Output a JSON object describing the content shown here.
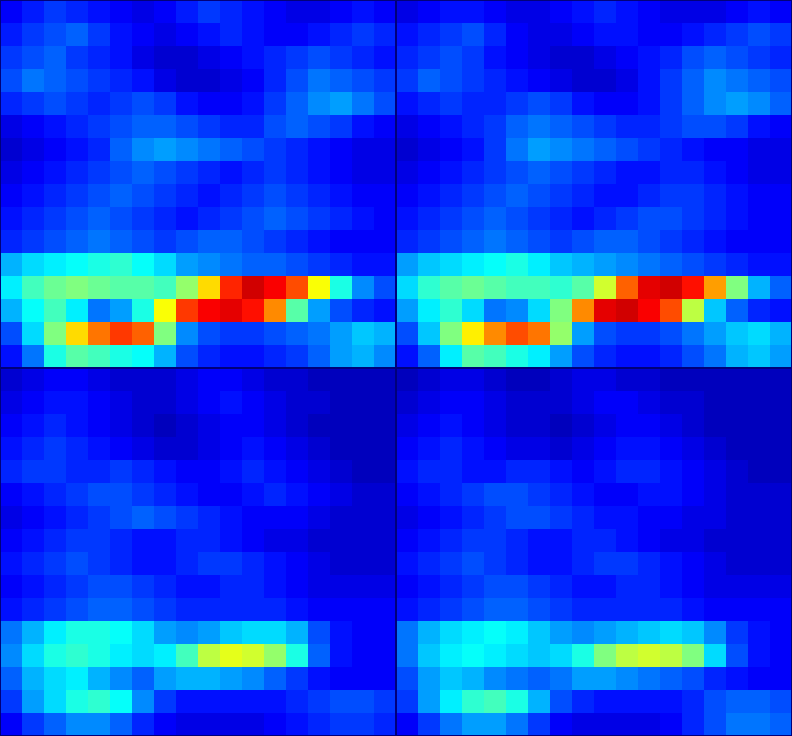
{
  "chart_data": [
    {
      "type": "heatmap",
      "tick_labels": false,
      "clim": [
        0,
        100
      ],
      "cells": [
        [
          12,
          15,
          18,
          16,
          14,
          12,
          10,
          12,
          15,
          18,
          16,
          14,
          12,
          10,
          10,
          12,
          14,
          12
        ],
        [
          15,
          18,
          20,
          22,
          18,
          14,
          12,
          10,
          12,
          14,
          16,
          14,
          12,
          12,
          14,
          16,
          18,
          16
        ],
        [
          18,
          20,
          22,
          18,
          16,
          14,
          10,
          8,
          8,
          10,
          12,
          14,
          16,
          18,
          20,
          18,
          16,
          14
        ],
        [
          20,
          24,
          22,
          20,
          18,
          16,
          14,
          10,
          8,
          8,
          10,
          12,
          16,
          20,
          24,
          22,
          20,
          18
        ],
        [
          16,
          18,
          20,
          18,
          16,
          18,
          20,
          18,
          14,
          12,
          12,
          14,
          18,
          22,
          26,
          28,
          24,
          20
        ],
        [
          10,
          12,
          14,
          16,
          18,
          20,
          22,
          22,
          20,
          18,
          16,
          16,
          20,
          22,
          20,
          18,
          14,
          12
        ],
        [
          8,
          10,
          12,
          14,
          16,
          22,
          26,
          28,
          26,
          24,
          22,
          20,
          18,
          16,
          14,
          12,
          10,
          10
        ],
        [
          10,
          12,
          14,
          16,
          18,
          20,
          22,
          20,
          18,
          16,
          14,
          16,
          18,
          16,
          14,
          12,
          10,
          10
        ],
        [
          12,
          14,
          16,
          18,
          20,
          22,
          20,
          18,
          16,
          14,
          16,
          18,
          20,
          18,
          16,
          14,
          12,
          12
        ],
        [
          14,
          16,
          18,
          20,
          22,
          20,
          18,
          16,
          14,
          16,
          18,
          20,
          22,
          20,
          18,
          16,
          14,
          12
        ],
        [
          16,
          18,
          20,
          22,
          24,
          22,
          20,
          18,
          20,
          22,
          22,
          20,
          18,
          16,
          14,
          12,
          12,
          12
        ],
        [
          30,
          34,
          36,
          38,
          40,
          42,
          38,
          34,
          28,
          26,
          24,
          22,
          22,
          20,
          18,
          16,
          14,
          14
        ],
        [
          36,
          44,
          48,
          50,
          48,
          46,
          46,
          44,
          52,
          66,
          84,
          92,
          88,
          80,
          62,
          40,
          26,
          20
        ],
        [
          30,
          38,
          44,
          36,
          24,
          28,
          40,
          62,
          82,
          88,
          90,
          86,
          74,
          46,
          28,
          20,
          16,
          14
        ],
        [
          20,
          34,
          50,
          66,
          76,
          82,
          78,
          50,
          26,
          20,
          18,
          18,
          20,
          22,
          24,
          28,
          32,
          30
        ],
        [
          14,
          24,
          40,
          46,
          44,
          40,
          38,
          30,
          20,
          16,
          14,
          14,
          16,
          18,
          22,
          28,
          30,
          26
        ]
      ]
    },
    {
      "type": "heatmap",
      "tick_labels": false,
      "clim": [
        0,
        100
      ],
      "cells": [
        [
          10,
          12,
          14,
          14,
          12,
          10,
          10,
          12,
          14,
          16,
          14,
          12,
          10,
          10,
          10,
          12,
          14,
          12
        ],
        [
          14,
          16,
          18,
          20,
          16,
          12,
          10,
          10,
          12,
          14,
          14,
          12,
          12,
          14,
          16,
          18,
          20,
          18
        ],
        [
          16,
          18,
          20,
          18,
          14,
          12,
          10,
          8,
          8,
          10,
          12,
          14,
          16,
          20,
          22,
          20,
          18,
          16
        ],
        [
          18,
          22,
          20,
          18,
          16,
          14,
          12,
          10,
          8,
          8,
          10,
          14,
          18,
          22,
          26,
          24,
          22,
          20
        ],
        [
          14,
          16,
          18,
          16,
          16,
          18,
          20,
          18,
          14,
          12,
          12,
          14,
          18,
          22,
          26,
          28,
          26,
          22
        ],
        [
          10,
          12,
          14,
          16,
          18,
          22,
          24,
          22,
          20,
          18,
          16,
          16,
          18,
          20,
          20,
          18,
          14,
          12
        ],
        [
          8,
          10,
          12,
          14,
          18,
          24,
          28,
          26,
          24,
          22,
          20,
          18,
          16,
          14,
          12,
          12,
          10,
          10
        ],
        [
          10,
          12,
          14,
          16,
          18,
          20,
          22,
          20,
          18,
          16,
          14,
          14,
          16,
          16,
          14,
          12,
          10,
          10
        ],
        [
          12,
          14,
          16,
          18,
          20,
          22,
          20,
          18,
          16,
          14,
          14,
          16,
          18,
          18,
          16,
          14,
          12,
          12
        ],
        [
          14,
          16,
          18,
          20,
          22,
          20,
          18,
          16,
          14,
          16,
          18,
          20,
          20,
          18,
          16,
          14,
          12,
          12
        ],
        [
          16,
          18,
          20,
          22,
          24,
          22,
          20,
          18,
          20,
          22,
          22,
          20,
          18,
          16,
          14,
          12,
          12,
          12
        ],
        [
          28,
          32,
          34,
          36,
          38,
          40,
          36,
          32,
          30,
          28,
          26,
          24,
          22,
          20,
          18,
          16,
          14,
          14
        ],
        [
          34,
          42,
          46,
          48,
          46,
          44,
          44,
          42,
          46,
          58,
          78,
          90,
          92,
          86,
          72,
          50,
          30,
          22
        ],
        [
          28,
          36,
          42,
          34,
          24,
          26,
          34,
          50,
          74,
          90,
          92,
          88,
          80,
          56,
          32,
          22,
          16,
          14
        ],
        [
          20,
          32,
          50,
          64,
          74,
          80,
          76,
          52,
          28,
          20,
          18,
          18,
          20,
          24,
          28,
          32,
          34,
          30
        ],
        [
          14,
          22,
          36,
          46,
          44,
          40,
          36,
          28,
          20,
          16,
          14,
          14,
          16,
          20,
          24,
          30,
          32,
          28
        ]
      ]
    },
    {
      "type": "heatmap",
      "tick_labels": false,
      "clim": [
        0,
        100
      ],
      "cells": [
        [
          8,
          10,
          12,
          12,
          10,
          8,
          8,
          8,
          10,
          12,
          12,
          10,
          8,
          8,
          6,
          6,
          6,
          6
        ],
        [
          10,
          12,
          14,
          14,
          12,
          10,
          8,
          8,
          10,
          12,
          14,
          12,
          10,
          8,
          8,
          6,
          6,
          6
        ],
        [
          12,
          14,
          16,
          14,
          12,
          10,
          8,
          6,
          8,
          10,
          12,
          12,
          10,
          8,
          6,
          6,
          6,
          6
        ],
        [
          14,
          16,
          18,
          16,
          14,
          12,
          10,
          8,
          8,
          10,
          12,
          14,
          12,
          10,
          8,
          6,
          6,
          6
        ],
        [
          16,
          18,
          18,
          16,
          16,
          18,
          16,
          14,
          12,
          12,
          14,
          16,
          14,
          12,
          10,
          8,
          6,
          6
        ],
        [
          12,
          14,
          16,
          18,
          20,
          20,
          18,
          16,
          14,
          12,
          12,
          14,
          16,
          14,
          12,
          10,
          8,
          8
        ],
        [
          10,
          12,
          14,
          16,
          18,
          20,
          22,
          20,
          18,
          16,
          14,
          12,
          12,
          12,
          10,
          8,
          8,
          8
        ],
        [
          12,
          14,
          16,
          18,
          18,
          16,
          14,
          14,
          16,
          16,
          14,
          12,
          10,
          10,
          8,
          8,
          8,
          8
        ],
        [
          14,
          16,
          18,
          20,
          18,
          16,
          14,
          14,
          16,
          18,
          18,
          16,
          14,
          12,
          10,
          8,
          8,
          8
        ],
        [
          12,
          14,
          16,
          18,
          20,
          20,
          18,
          16,
          14,
          14,
          16,
          16,
          14,
          12,
          10,
          10,
          10,
          10
        ],
        [
          14,
          16,
          18,
          20,
          22,
          22,
          20,
          18,
          16,
          16,
          16,
          16,
          16,
          14,
          12,
          12,
          12,
          12
        ],
        [
          24,
          30,
          36,
          40,
          40,
          38,
          34,
          28,
          26,
          28,
          32,
          34,
          34,
          30,
          20,
          14,
          12,
          12
        ],
        [
          26,
          34,
          40,
          42,
          40,
          36,
          34,
          36,
          44,
          56,
          60,
          58,
          52,
          40,
          22,
          14,
          12,
          12
        ],
        [
          22,
          30,
          34,
          36,
          30,
          26,
          22,
          28,
          30,
          30,
          28,
          26,
          22,
          18,
          14,
          12,
          12,
          12
        ],
        [
          18,
          28,
          34,
          40,
          42,
          38,
          26,
          18,
          14,
          14,
          14,
          14,
          14,
          16,
          18,
          20,
          20,
          18
        ],
        [
          12,
          18,
          22,
          26,
          26,
          22,
          16,
          12,
          10,
          10,
          10,
          10,
          12,
          14,
          16,
          18,
          18,
          16
        ]
      ]
    },
    {
      "type": "heatmap",
      "tick_labels": false,
      "clim": [
        0,
        100
      ],
      "cells": [
        [
          6,
          8,
          10,
          10,
          8,
          6,
          6,
          8,
          10,
          10,
          8,
          8,
          6,
          6,
          6,
          6,
          6,
          6
        ],
        [
          8,
          10,
          12,
          12,
          10,
          8,
          8,
          8,
          10,
          12,
          12,
          10,
          8,
          8,
          6,
          6,
          6,
          6
        ],
        [
          10,
          12,
          14,
          12,
          10,
          8,
          8,
          6,
          8,
          10,
          12,
          12,
          10,
          8,
          6,
          6,
          6,
          6
        ],
        [
          12,
          14,
          16,
          14,
          12,
          10,
          10,
          8,
          10,
          12,
          14,
          14,
          12,
          10,
          8,
          6,
          6,
          6
        ],
        [
          14,
          16,
          16,
          14,
          14,
          16,
          16,
          14,
          12,
          14,
          16,
          16,
          14,
          12,
          10,
          8,
          6,
          6
        ],
        [
          12,
          14,
          16,
          18,
          20,
          20,
          18,
          16,
          14,
          12,
          12,
          14,
          14,
          12,
          10,
          8,
          8,
          8
        ],
        [
          10,
          12,
          14,
          16,
          18,
          20,
          20,
          18,
          16,
          14,
          14,
          12,
          12,
          10,
          10,
          8,
          8,
          8
        ],
        [
          12,
          14,
          16,
          18,
          18,
          16,
          14,
          14,
          16,
          16,
          14,
          12,
          10,
          10,
          8,
          8,
          8,
          8
        ],
        [
          14,
          16,
          18,
          20,
          18,
          16,
          14,
          14,
          16,
          18,
          18,
          16,
          14,
          12,
          10,
          8,
          8,
          8
        ],
        [
          12,
          14,
          16,
          18,
          20,
          20,
          18,
          16,
          14,
          14,
          16,
          16,
          14,
          12,
          10,
          10,
          10,
          10
        ],
        [
          14,
          16,
          18,
          20,
          22,
          22,
          20,
          18,
          16,
          16,
          16,
          16,
          16,
          14,
          12,
          12,
          12,
          12
        ],
        [
          24,
          30,
          34,
          36,
          38,
          36,
          32,
          28,
          26,
          28,
          30,
          32,
          34,
          32,
          26,
          18,
          14,
          12
        ],
        [
          24,
          32,
          36,
          38,
          36,
          34,
          32,
          34,
          40,
          50,
          56,
          58,
          56,
          50,
          34,
          20,
          14,
          12
        ],
        [
          20,
          28,
          32,
          30,
          26,
          24,
          22,
          24,
          28,
          28,
          26,
          24,
          22,
          20,
          16,
          14,
          12,
          12
        ],
        [
          18,
          28,
          36,
          42,
          44,
          40,
          30,
          20,
          16,
          14,
          14,
          14,
          14,
          16,
          20,
          22,
          22,
          20
        ],
        [
          12,
          18,
          24,
          28,
          28,
          24,
          18,
          12,
          10,
          10,
          10,
          10,
          12,
          16,
          20,
          24,
          24,
          22
        ]
      ]
    }
  ]
}
